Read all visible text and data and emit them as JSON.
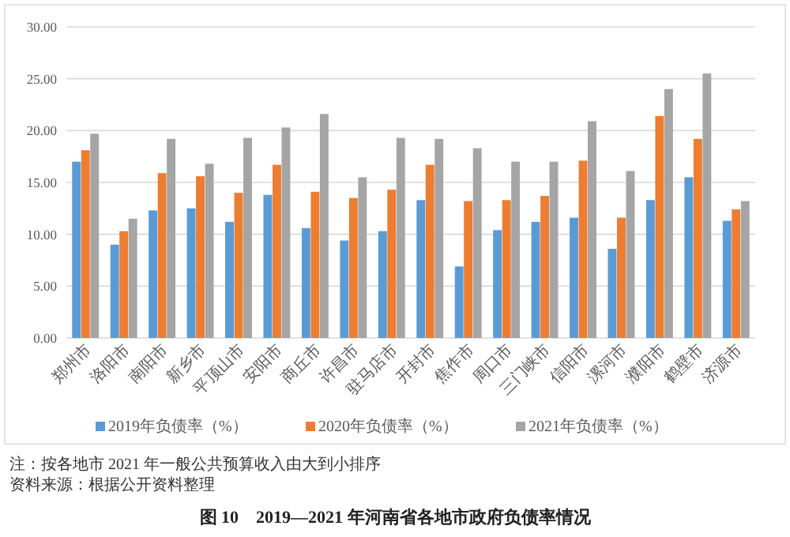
{
  "chart_data": {
    "type": "bar",
    "title": "图 10　2019—2021 年河南省各地市政府负债率情况",
    "annotations": [
      "注：按各地市 2021 年一般公共预算收入由大到小排序",
      "资料来源：根据公开资料整理"
    ],
    "categories": [
      "郑州市",
      "洛阳市",
      "南阳市",
      "新乡市",
      "平顶山市",
      "安阳市",
      "商丘市",
      "许昌市",
      "驻马店市",
      "开封市",
      "焦作市",
      "周口市",
      "三门峡市",
      "信阳市",
      "漯河市",
      "濮阳市",
      "鹤壁市",
      "济源市"
    ],
    "series": [
      {
        "name": "2019年负债率（%）",
        "color": "#5b9bd5",
        "values": [
          17.0,
          9.0,
          12.3,
          12.5,
          11.2,
          13.8,
          10.6,
          9.4,
          10.3,
          13.3,
          6.9,
          10.4,
          11.2,
          11.6,
          8.6,
          13.3,
          15.5,
          11.3
        ]
      },
      {
        "name": "2020年负债率（%）",
        "color": "#ed7d31",
        "values": [
          18.1,
          10.3,
          15.9,
          15.6,
          14.0,
          16.7,
          14.1,
          13.5,
          14.3,
          16.7,
          13.2,
          13.3,
          13.7,
          17.1,
          11.6,
          21.4,
          19.2,
          12.4
        ]
      },
      {
        "name": "2021年负债率（%）",
        "color": "#a5a5a5",
        "values": [
          19.7,
          11.5,
          19.2,
          16.8,
          19.3,
          20.3,
          21.6,
          15.5,
          19.3,
          19.2,
          18.3,
          17.0,
          17.0,
          20.9,
          16.1,
          24.0,
          25.5,
          13.2
        ]
      }
    ],
    "ylim": [
      0,
      30
    ],
    "yticks": [
      {
        "value": 0,
        "label": "0.00"
      },
      {
        "value": 5,
        "label": "5.00"
      },
      {
        "value": 10,
        "label": "10.00"
      },
      {
        "value": 15,
        "label": "15.00"
      },
      {
        "value": 20,
        "label": "20.00"
      },
      {
        "value": 25,
        "label": "25.00"
      },
      {
        "value": 30,
        "label": "30.00"
      }
    ],
    "grid": "y",
    "legend": "bottom"
  }
}
